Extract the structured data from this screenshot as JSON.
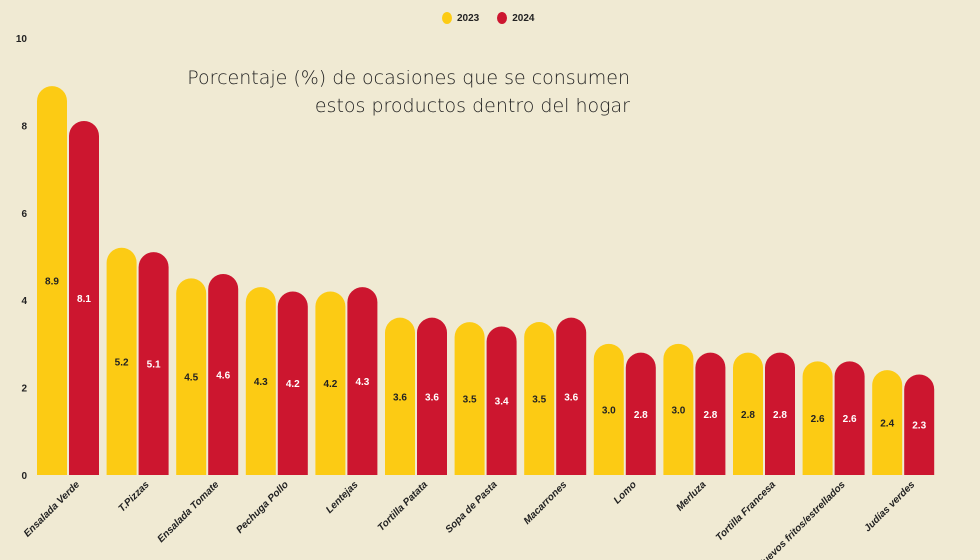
{
  "chart_data": {
    "type": "bar",
    "title": "Porcentaje (%) de ocasiones que se consumen estos productos dentro del hogar",
    "title_lines": [
      "Porcentaje (%) de ocasiones que se consumen",
      "estos productos dentro del hogar"
    ],
    "categories": [
      "Ensalada Verde",
      "T.Pizzas",
      "Ensalada Tomate",
      "Pechuga Pollo",
      "Lentejas",
      "Tortilla Patata",
      "Sopa de Pasta",
      "Macarrones",
      "Lomo",
      "Merluza",
      "Tortilla Francesa",
      "Huevos fritos/estrellados",
      "Judías verdes"
    ],
    "series": [
      {
        "name": "2023",
        "color": "#fccb14",
        "values": [
          8.9,
          5.2,
          4.5,
          4.3,
          4.2,
          3.6,
          3.5,
          3.5,
          3.0,
          3.0,
          2.8,
          2.6,
          2.4
        ]
      },
      {
        "name": "2024",
        "color": "#cc162f",
        "values": [
          8.1,
          5.1,
          4.6,
          4.2,
          4.3,
          3.6,
          3.4,
          3.6,
          2.8,
          2.8,
          2.8,
          2.6,
          2.3
        ]
      }
    ],
    "ylim": [
      0,
      10
    ],
    "yticks": [
      0,
      2,
      4,
      6,
      8,
      10
    ],
    "grid": false,
    "legend": "top-center",
    "xlabel": "",
    "ylabel": ""
  }
}
